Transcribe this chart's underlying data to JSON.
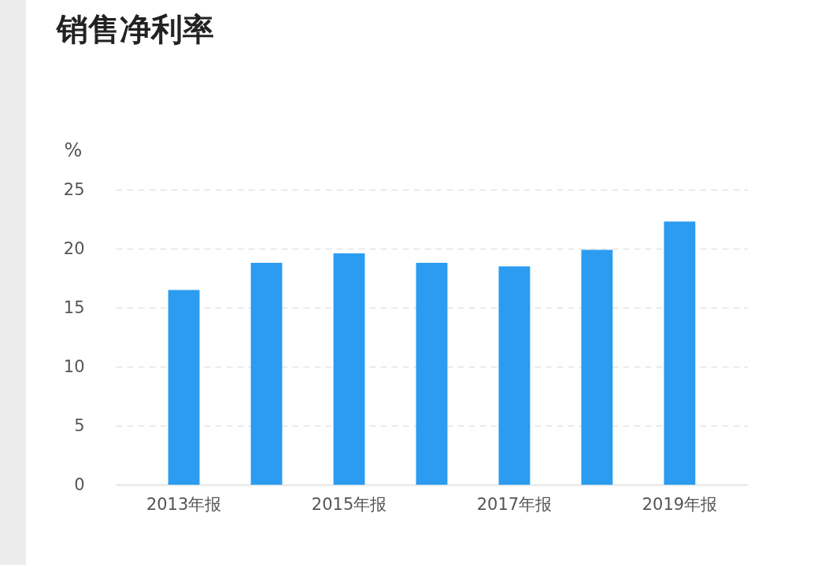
{
  "chart_data": {
    "type": "bar",
    "title": "销售净利率",
    "ylabel": "%",
    "categories": [
      "2013年报",
      null,
      "2015年报",
      null,
      "2017年报",
      null,
      "2019年报"
    ],
    "values": [
      16.5,
      18.8,
      19.6,
      18.8,
      18.5,
      19.9,
      22.3
    ],
    "color": "#2b9cf0",
    "ylim": [
      0,
      25
    ],
    "yticks": [
      0,
      5,
      10,
      15,
      20,
      25
    ],
    "grid": "y"
  }
}
